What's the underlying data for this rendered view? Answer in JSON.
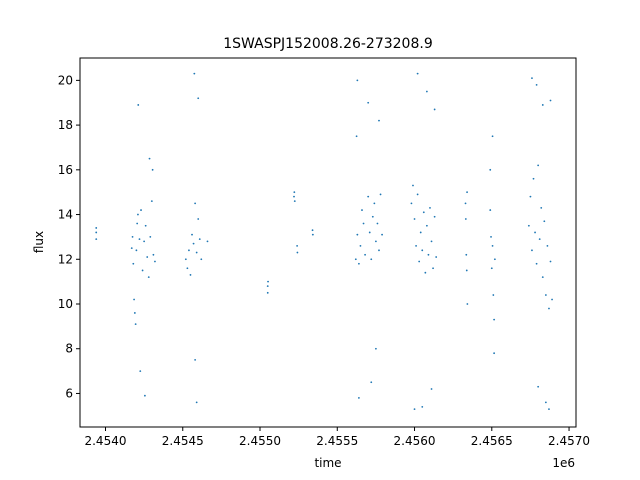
{
  "chart_data": {
    "type": "scatter",
    "title": "1SWASPJ152008.26-273208.9",
    "xlabel": "time",
    "ylabel": "flux",
    "x_offset_label": "1e6",
    "xlim": [
      2453835,
      2457045
    ],
    "ylim": [
      4.5,
      21.0
    ],
    "x_ticks": [
      2454000,
      2454500,
      2455000,
      2455500,
      2456000,
      2456500,
      2457000
    ],
    "x_tick_labels": [
      "2.4540",
      "2.4545",
      "2.4550",
      "2.4555",
      "2.4560",
      "2.4565",
      "2.4570"
    ],
    "y_ticks": [
      6,
      8,
      10,
      12,
      14,
      16,
      18,
      20
    ],
    "y_tick_labels": [
      "6",
      "8",
      "10",
      "12",
      "14",
      "16",
      "18",
      "20"
    ],
    "grid": false,
    "marker_color": "#1f77b4",
    "series": [
      {
        "points": [
          [
            2453940,
            13.2
          ],
          [
            2453940,
            12.9
          ],
          [
            2453940,
            13.4
          ],
          [
            2454170,
            12.5
          ],
          [
            2454175,
            13.0
          ],
          [
            2454180,
            11.8
          ],
          [
            2454185,
            10.2
          ],
          [
            2454190,
            9.6
          ],
          [
            2454195,
            9.1
          ],
          [
            2454200,
            12.4
          ],
          [
            2454205,
            13.6
          ],
          [
            2454210,
            14.0
          ],
          [
            2454220,
            12.9
          ],
          [
            2454230,
            14.2
          ],
          [
            2454240,
            11.5
          ],
          [
            2454250,
            12.8
          ],
          [
            2454260,
            13.5
          ],
          [
            2454270,
            12.1
          ],
          [
            2454280,
            11.2
          ],
          [
            2454290,
            13.0
          ],
          [
            2454300,
            14.6
          ],
          [
            2454310,
            12.2
          ],
          [
            2454320,
            11.9
          ],
          [
            2454212,
            18.9
          ],
          [
            2454225,
            7.0
          ],
          [
            2454255,
            5.9
          ],
          [
            2454285,
            16.5
          ],
          [
            2454305,
            16.0
          ],
          [
            2454520,
            12.0
          ],
          [
            2454530,
            11.6
          ],
          [
            2454540,
            12.4
          ],
          [
            2454550,
            11.3
          ],
          [
            2454560,
            13.1
          ],
          [
            2454570,
            12.7
          ],
          [
            2454580,
            14.5
          ],
          [
            2454590,
            12.3
          ],
          [
            2454600,
            13.8
          ],
          [
            2454610,
            12.9
          ],
          [
            2454620,
            12.0
          ],
          [
            2454660,
            12.8
          ],
          [
            2454575,
            20.3
          ],
          [
            2454590,
            5.6
          ],
          [
            2454600,
            19.2
          ],
          [
            2454580,
            7.5
          ],
          [
            2455050,
            10.8
          ],
          [
            2455050,
            10.5
          ],
          [
            2455052,
            11.0
          ],
          [
            2455220,
            14.8
          ],
          [
            2455222,
            15.0
          ],
          [
            2455225,
            14.6
          ],
          [
            2455240,
            12.6
          ],
          [
            2455242,
            12.3
          ],
          [
            2455340,
            13.3
          ],
          [
            2455342,
            13.1
          ],
          [
            2455620,
            12.0
          ],
          [
            2455630,
            13.1
          ],
          [
            2455640,
            11.8
          ],
          [
            2455650,
            12.6
          ],
          [
            2455660,
            14.2
          ],
          [
            2455670,
            13.6
          ],
          [
            2455680,
            12.2
          ],
          [
            2455700,
            14.8
          ],
          [
            2455710,
            13.2
          ],
          [
            2455720,
            12.0
          ],
          [
            2455730,
            13.9
          ],
          [
            2455740,
            14.5
          ],
          [
            2455750,
            12.8
          ],
          [
            2455760,
            13.6
          ],
          [
            2455770,
            12.4
          ],
          [
            2455780,
            14.9
          ],
          [
            2455790,
            13.1
          ],
          [
            2455625,
            17.5
          ],
          [
            2455630,
            20.0
          ],
          [
            2455640,
            5.8
          ],
          [
            2455700,
            19.0
          ],
          [
            2455720,
            6.5
          ],
          [
            2455750,
            8.0
          ],
          [
            2455770,
            18.2
          ],
          [
            2455980,
            14.5
          ],
          [
            2455990,
            15.3
          ],
          [
            2456000,
            13.8
          ],
          [
            2456010,
            12.6
          ],
          [
            2456020,
            14.9
          ],
          [
            2456030,
            11.9
          ],
          [
            2456040,
            13.2
          ],
          [
            2456050,
            12.4
          ],
          [
            2456060,
            14.1
          ],
          [
            2456070,
            11.4
          ],
          [
            2456080,
            13.5
          ],
          [
            2456090,
            12.2
          ],
          [
            2456100,
            14.3
          ],
          [
            2456110,
            12.8
          ],
          [
            2456120,
            11.6
          ],
          [
            2456130,
            13.9
          ],
          [
            2456140,
            12.1
          ],
          [
            2456020,
            20.3
          ],
          [
            2456050,
            5.4
          ],
          [
            2456080,
            19.5
          ],
          [
            2456110,
            6.2
          ],
          [
            2456130,
            18.7
          ],
          [
            2456000,
            5.3
          ],
          [
            2456330,
            14.5
          ],
          [
            2456332,
            13.8
          ],
          [
            2456335,
            12.2
          ],
          [
            2456338,
            11.5
          ],
          [
            2456340,
            15.0
          ],
          [
            2456342,
            10.0
          ],
          [
            2456490,
            14.2
          ],
          [
            2456495,
            13.0
          ],
          [
            2456500,
            11.6
          ],
          [
            2456505,
            12.6
          ],
          [
            2456510,
            10.4
          ],
          [
            2456515,
            9.3
          ],
          [
            2456520,
            12.0
          ],
          [
            2456490,
            16.0
          ],
          [
            2456515,
            7.8
          ],
          [
            2456505,
            17.5
          ],
          [
            2456740,
            13.5
          ],
          [
            2456750,
            14.8
          ],
          [
            2456760,
            12.4
          ],
          [
            2456770,
            15.6
          ],
          [
            2456780,
            13.2
          ],
          [
            2456790,
            11.8
          ],
          [
            2456800,
            16.2
          ],
          [
            2456810,
            12.9
          ],
          [
            2456820,
            14.3
          ],
          [
            2456830,
            11.2
          ],
          [
            2456840,
            13.7
          ],
          [
            2456850,
            10.4
          ],
          [
            2456860,
            12.6
          ],
          [
            2456870,
            9.8
          ],
          [
            2456880,
            11.9
          ],
          [
            2456890,
            10.2
          ],
          [
            2456760,
            20.1
          ],
          [
            2456790,
            19.8
          ],
          [
            2456800,
            6.3
          ],
          [
            2456830,
            18.9
          ],
          [
            2456850,
            5.6
          ],
          [
            2456870,
            5.3
          ],
          [
            2456880,
            19.1
          ]
        ]
      }
    ]
  }
}
